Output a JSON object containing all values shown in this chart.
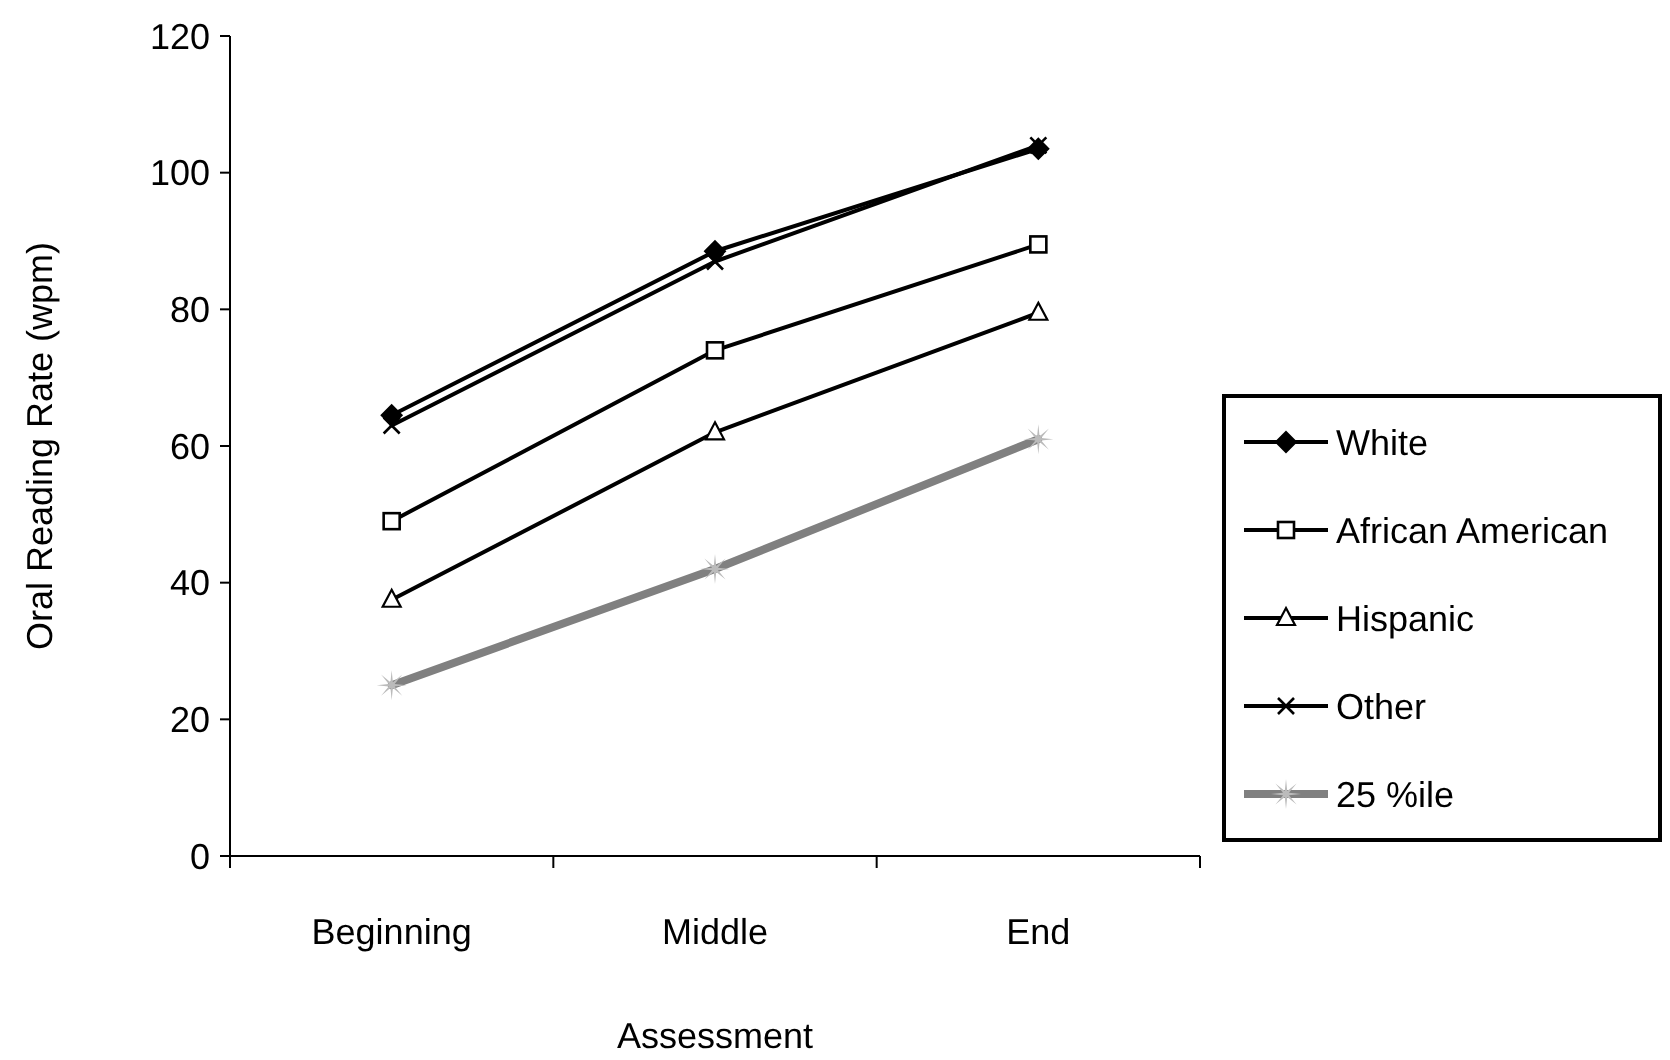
{
  "chart_data": {
    "type": "line",
    "xlabel": "Assessment",
    "ylabel": "Oral Reading Rate (wpm)",
    "categories": [
      "Beginning",
      "Middle",
      "End"
    ],
    "series": [
      {
        "name": "White",
        "color": "#000000",
        "marker": "diamond",
        "values": [
          64.5,
          88.5,
          103.5
        ]
      },
      {
        "name": "African American",
        "color": "#000000",
        "marker": "square",
        "values": [
          49,
          74,
          89.5
        ]
      },
      {
        "name": "Hispanic",
        "color": "#000000",
        "marker": "triangle",
        "values": [
          37.5,
          62,
          79.5
        ]
      },
      {
        "name": "Other",
        "color": "#000000",
        "marker": "cross",
        "values": [
          63,
          87,
          104
        ]
      },
      {
        "name": "25 %ile",
        "color": "#808080",
        "marker": "star",
        "values": [
          25,
          42,
          61
        ]
      }
    ],
    "ylim": [
      0,
      120
    ],
    "yticks": [
      0,
      20,
      40,
      60,
      80,
      100,
      120
    ],
    "grid": false,
    "legend": "right"
  }
}
